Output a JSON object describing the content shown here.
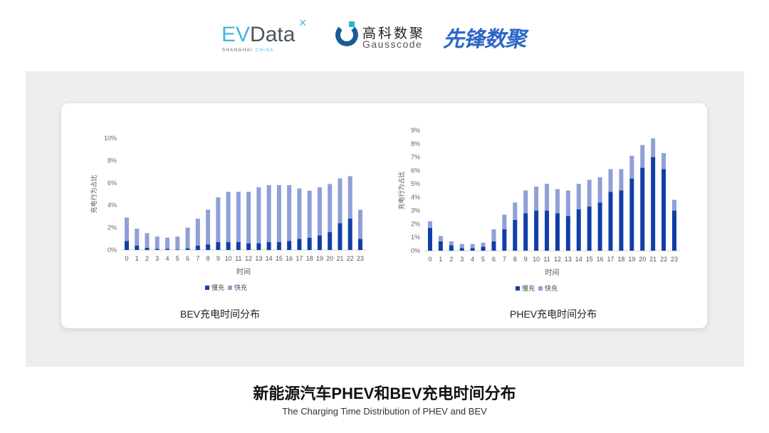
{
  "logos": {
    "evdata": "EVData",
    "evdata_sub": "SHANGHAI CHINA",
    "gausscode_cn": "高科数聚",
    "gausscode_en": "Gausscode",
    "xianfeng": "先锋数聚"
  },
  "colors": {
    "slow": "#0f3fa6",
    "fast": "#8f9fd8",
    "panel": "#eeeeee"
  },
  "titles": {
    "main": "新能源汽车PHEV和BEV充电时间分布",
    "sub": "The Charging Time Distribution of PHEV and BEV"
  },
  "chart_data": [
    {
      "type": "bar",
      "stacked": true,
      "title": "BEV充电时间分布",
      "xlabel": "时间",
      "ylabel": "充电行为占比",
      "categories": [
        "0",
        "1",
        "2",
        "3",
        "4",
        "5",
        "6",
        "7",
        "8",
        "9",
        "10",
        "11",
        "12",
        "13",
        "14",
        "15",
        "16",
        "17",
        "18",
        "19",
        "20",
        "21",
        "22",
        "23"
      ],
      "ylim": [
        0,
        10
      ],
      "yticks": [
        "0%",
        "2%",
        "4%",
        "6%",
        "8%",
        "10%"
      ],
      "legend": "bottom",
      "grid": false,
      "series": [
        {
          "name": "慢充",
          "values": [
            0.8,
            0.4,
            0.2,
            0.1,
            0.1,
            0.05,
            0.15,
            0.4,
            0.5,
            0.7,
            0.7,
            0.7,
            0.6,
            0.6,
            0.7,
            0.7,
            0.8,
            1.0,
            1.1,
            1.3,
            1.6,
            2.4,
            2.8,
            1.0
          ]
        },
        {
          "name": "快充",
          "values": [
            2.1,
            1.5,
            1.3,
            1.1,
            1.0,
            1.15,
            1.85,
            2.4,
            3.1,
            4.0,
            4.5,
            4.5,
            4.6,
            5.0,
            5.1,
            5.1,
            5.0,
            4.5,
            4.2,
            4.3,
            4.3,
            4.0,
            3.8,
            2.6
          ]
        }
      ]
    },
    {
      "type": "bar",
      "stacked": true,
      "title": "PHEV充电时间分布",
      "xlabel": "时间",
      "ylabel": "充电行为占比",
      "categories": [
        "0",
        "1",
        "2",
        "3",
        "4",
        "5",
        "6",
        "7",
        "8",
        "9",
        "10",
        "11",
        "12",
        "13",
        "14",
        "15",
        "16",
        "17",
        "18",
        "19",
        "20",
        "21",
        "22",
        "23"
      ],
      "ylim": [
        0,
        9
      ],
      "yticks": [
        "0%",
        "1%",
        "2%",
        "3%",
        "4%",
        "5%",
        "6%",
        "7%",
        "8%",
        "9%"
      ],
      "legend": "bottom",
      "grid": false,
      "series": [
        {
          "name": "慢充",
          "values": [
            1.7,
            0.7,
            0.4,
            0.2,
            0.2,
            0.3,
            0.7,
            1.6,
            2.3,
            2.8,
            3.0,
            3.0,
            2.8,
            2.6,
            3.1,
            3.3,
            3.6,
            4.4,
            4.5,
            5.4,
            6.2,
            7.0,
            6.1,
            3.0
          ]
        },
        {
          "name": "快充",
          "values": [
            0.5,
            0.4,
            0.3,
            0.3,
            0.3,
            0.3,
            0.9,
            1.1,
            1.3,
            1.7,
            1.8,
            2.0,
            1.8,
            1.9,
            1.9,
            2.0,
            1.9,
            1.7,
            1.6,
            1.7,
            1.7,
            1.4,
            1.2,
            0.8
          ]
        }
      ]
    }
  ]
}
